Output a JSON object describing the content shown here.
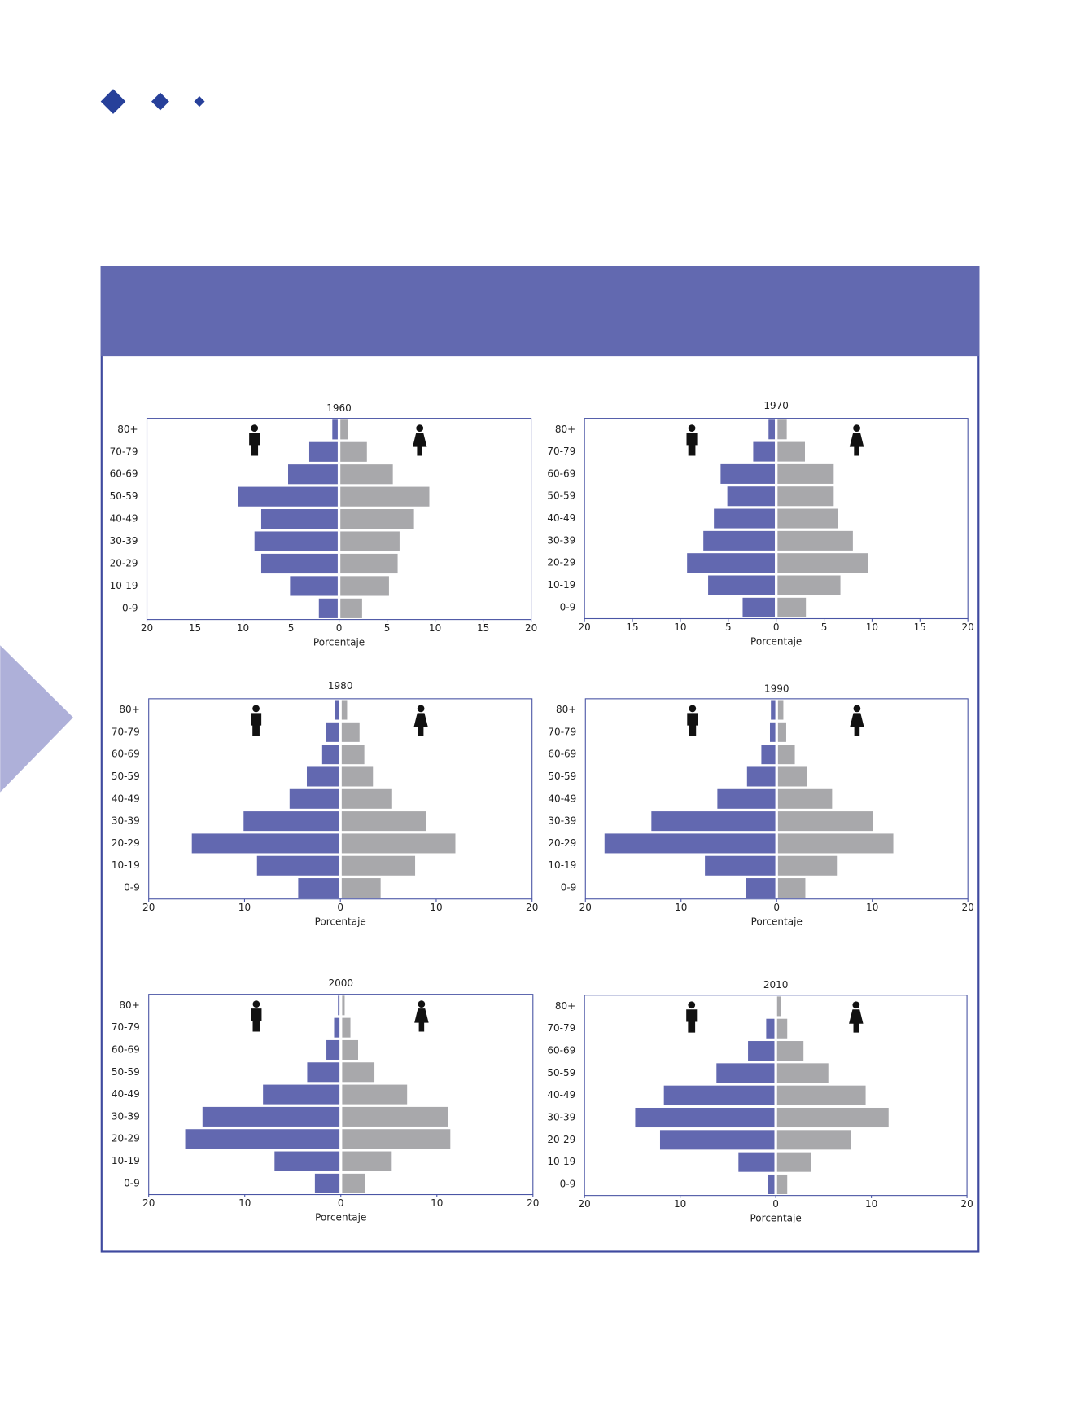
{
  "chart_data": [
    {
      "type": "bar",
      "orientation": "horizontal",
      "title": "1960",
      "x_label": "Porcentaje",
      "categories": [
        "80+",
        "70-79",
        "60-69",
        "50-59",
        "40-49",
        "30-39",
        "20-29",
        "10-19",
        "0-9"
      ],
      "series": [
        {
          "color": "#6268b0",
          "values": [
            -0.7,
            -3.1,
            -5.3,
            -10.5,
            -8.1,
            -8.8,
            -8.1,
            -5.1,
            -2.1
          ]
        },
        {
          "color": "#a8a8ab",
          "values": [
            0.9,
            2.9,
            5.6,
            9.4,
            7.8,
            6.3,
            6.1,
            5.2,
            2.4
          ]
        }
      ],
      "xlim": [
        -20,
        20
      ],
      "xticks": [
        {
          "value": -20,
          "label": "20"
        },
        {
          "value": -15,
          "label": "15"
        },
        {
          "value": -10,
          "label": "10"
        },
        {
          "value": -5,
          "label": "5"
        },
        0,
        5,
        10,
        15,
        20
      ]
    },
    {
      "type": "bar",
      "orientation": "horizontal",
      "title": "1970",
      "x_label": "Porcentaje",
      "categories": [
        "80+",
        "70-79",
        "60-69",
        "50-59",
        "40-49",
        "30-39",
        "20-29",
        "10-19",
        "0-9"
      ],
      "series": [
        {
          "color": "#6268b0",
          "values": [
            -0.8,
            -2.4,
            -5.8,
            -5.1,
            -6.5,
            -7.6,
            -9.3,
            -7.1,
            -3.5
          ]
        },
        {
          "color": "#a8a8ab",
          "values": [
            1.1,
            3.0,
            6.0,
            6.0,
            6.4,
            8.0,
            9.6,
            6.7,
            3.1
          ]
        }
      ],
      "xlim": [
        -20,
        20
      ],
      "xticks": [
        {
          "value": -20,
          "label": "20"
        },
        {
          "value": -15,
          "label": "15"
        },
        {
          "value": -10,
          "label": "10"
        },
        {
          "value": -5,
          "label": "5"
        },
        0,
        5,
        10,
        15,
        20
      ]
    },
    {
      "type": "bar",
      "orientation": "horizontal",
      "title": "1980",
      "x_label": "Porcentaje",
      "categories": [
        "80+",
        "70-79",
        "60-69",
        "50-59",
        "40-49",
        "30-39",
        "20-29",
        "10-19",
        "0-9"
      ],
      "series": [
        {
          "color": "#6268b0",
          "values": [
            -0.6,
            -1.5,
            -1.9,
            -3.5,
            -5.3,
            -10.1,
            -15.5,
            -8.7,
            -4.4
          ]
        },
        {
          "color": "#a8a8ab",
          "values": [
            0.7,
            2.0,
            2.5,
            3.4,
            5.4,
            8.9,
            12.0,
            7.8,
            4.2
          ]
        }
      ],
      "xlim": [
        -20,
        20
      ],
      "xticks": [
        {
          "value": -20,
          "label": "20"
        },
        {
          "value": -10,
          "label": "10"
        },
        0,
        10,
        20
      ]
    },
    {
      "type": "bar",
      "orientation": "horizontal",
      "title": "1990",
      "x_label": "Porcentaje",
      "categories": [
        "80+",
        "70-79",
        "60-69",
        "50-59",
        "40-49",
        "30-39",
        "20-29",
        "10-19",
        "0-9"
      ],
      "series": [
        {
          "color": "#6268b0",
          "values": [
            -0.6,
            -0.7,
            -1.6,
            -3.1,
            -6.2,
            -13.1,
            -18.0,
            -7.5,
            -3.2
          ]
        },
        {
          "color": "#a8a8ab",
          "values": [
            0.7,
            1.0,
            1.9,
            3.2,
            5.8,
            10.1,
            12.2,
            6.3,
            3.0
          ]
        }
      ],
      "xlim": [
        -20,
        20
      ],
      "xticks": [
        {
          "value": -20,
          "label": "20"
        },
        {
          "value": -10,
          "label": "10"
        },
        0,
        10,
        20
      ]
    },
    {
      "type": "bar",
      "orientation": "horizontal",
      "title": "2000",
      "x_label": "Porcentaje",
      "categories": [
        "80+",
        "70-79",
        "60-69",
        "50-59",
        "40-49",
        "30-39",
        "20-29",
        "10-19",
        "0-9"
      ],
      "series": [
        {
          "color": "#6268b0",
          "values": [
            -0.3,
            -0.7,
            -1.5,
            -3.5,
            -8.1,
            -14.4,
            -16.2,
            -6.9,
            -2.7
          ]
        },
        {
          "color": "#a8a8ab",
          "values": [
            0.4,
            1.0,
            1.8,
            3.5,
            6.9,
            11.2,
            11.4,
            5.3,
            2.5
          ]
        }
      ],
      "xlim": [
        -20,
        20
      ],
      "xticks": [
        {
          "value": -20,
          "label": "20"
        },
        {
          "value": -10,
          "label": "10"
        },
        0,
        10,
        20
      ]
    },
    {
      "type": "bar",
      "orientation": "horizontal",
      "title": "2010",
      "x_label": "Porcentaje",
      "categories": [
        "80+",
        "70-79",
        "60-69",
        "50-59",
        "40-49",
        "30-39",
        "20-29",
        "10-19",
        "0-9"
      ],
      "series": [
        {
          "color": "#6268b0",
          "values": [
            -0.1,
            -1.0,
            -2.9,
            -6.2,
            -11.7,
            -14.7,
            -12.1,
            -3.9,
            -0.8
          ]
        },
        {
          "color": "#a8a8ab",
          "values": [
            0.5,
            1.2,
            2.9,
            5.5,
            9.4,
            11.8,
            7.9,
            3.7,
            1.2
          ]
        }
      ],
      "xlim": [
        -20,
        20
      ],
      "xticks": [
        {
          "value": -20,
          "label": "20"
        },
        {
          "value": -10,
          "label": "10"
        },
        0,
        10,
        20
      ]
    }
  ]
}
